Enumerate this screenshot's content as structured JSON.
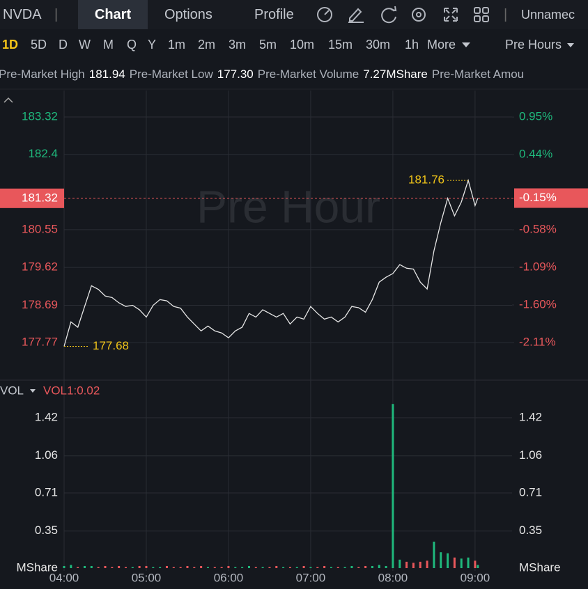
{
  "header": {
    "symbol": "NVDA",
    "tabs": [
      "Chart",
      "Options",
      "Profile"
    ],
    "active_tab": 0,
    "user": "Unnamec"
  },
  "timeframes": {
    "items": [
      "1D",
      "5D",
      "D",
      "W",
      "M",
      "Q",
      "Y",
      "1m",
      "2m",
      "3m",
      "5m",
      "10m",
      "15m",
      "30m",
      "1h"
    ],
    "active": 0,
    "more": "More",
    "session": "Pre Hours"
  },
  "stats": [
    {
      "label": "Pre-Market High",
      "value": "181.94"
    },
    {
      "label": "Pre-Market Low",
      "value": "177.30"
    },
    {
      "label": "Pre-Market Volume",
      "value": "7.27MShare"
    },
    {
      "label": "Pre-Market Amou"
    }
  ],
  "price_chart": {
    "type": "line",
    "watermark": "Pre Hour",
    "color": "#e6e6e6",
    "up_color": "#1fb87c",
    "down_color": "#e8575b",
    "x": [
      "04:00",
      "04:05",
      "04:10",
      "04:15",
      "04:20",
      "04:25",
      "04:30",
      "04:35",
      "04:40",
      "04:45",
      "04:50",
      "04:55",
      "05:00",
      "05:05",
      "05:10",
      "05:15",
      "05:20",
      "05:25",
      "05:30",
      "05:35",
      "05:40",
      "05:45",
      "05:50",
      "05:55",
      "06:00",
      "06:05",
      "06:10",
      "06:15",
      "06:20",
      "06:25",
      "06:30",
      "06:35",
      "06:40",
      "06:45",
      "06:50",
      "06:55",
      "07:00",
      "07:05",
      "07:10",
      "07:15",
      "07:20",
      "07:25",
      "07:30",
      "07:35",
      "07:40",
      "07:45",
      "07:50",
      "07:55",
      "08:00",
      "08:05",
      "08:10",
      "08:15",
      "08:20",
      "08:25",
      "08:30",
      "08:35",
      "08:40",
      "08:45",
      "08:50",
      "08:55",
      "09:00",
      "09:02"
    ],
    "values": [
      177.68,
      178.28,
      178.15,
      178.66,
      179.17,
      179.08,
      178.92,
      178.88,
      178.75,
      178.66,
      178.69,
      178.58,
      178.4,
      178.69,
      178.83,
      178.8,
      178.66,
      178.62,
      178.4,
      178.23,
      178.06,
      178.18,
      178.06,
      178.01,
      177.89,
      178.06,
      178.15,
      178.49,
      178.4,
      178.58,
      178.49,
      178.4,
      178.49,
      178.23,
      178.4,
      178.35,
      178.66,
      178.49,
      178.35,
      178.4,
      178.28,
      178.4,
      178.66,
      178.63,
      178.52,
      178.83,
      179.26,
      179.38,
      179.47,
      179.69,
      179.6,
      179.58,
      179.26,
      179.09,
      180.03,
      180.72,
      181.32,
      180.89,
      181.23,
      181.76,
      181.14,
      181.32
    ],
    "xlim": [
      "04:00",
      "09:27"
    ],
    "xticks": [
      "04:00",
      "05:00",
      "06:00",
      "07:00",
      "08:00",
      "09:00"
    ],
    "ylim": [
      176.85,
      183.97
    ],
    "yticks": [
      183.32,
      182.4,
      180.55,
      179.62,
      178.69,
      177.77
    ],
    "y2lim": [
      -2.62,
      1.31
    ],
    "y2ticks": [
      {
        "value": 0.95,
        "label": "0.95%"
      },
      {
        "value": 0.44,
        "label": "0.44%"
      },
      {
        "value": -0.58,
        "label": "-0.58%"
      },
      {
        "value": -1.09,
        "label": "-1.09%"
      },
      {
        "value": -1.6,
        "label": "-1.60%"
      },
      {
        "value": -2.11,
        "label": "-2.11%"
      }
    ],
    "last_price": 181.32,
    "last_change": {
      "value": -0.15,
      "label": "-0.15%"
    },
    "high": 181.76,
    "low": 177.68,
    "grid": true
  },
  "volume_chart": {
    "type": "bar",
    "title": "VOL",
    "indicator": "VOL1:0.02",
    "unit": "MShare",
    "values": [
      0.02,
      0.03,
      0.01,
      0.02,
      0.02,
      0.01,
      0.02,
      0.01,
      0.02,
      0.01,
      0.01,
      0.02,
      0.02,
      0.01,
      0.01,
      0.02,
      0.01,
      0.01,
      0.02,
      0.01,
      0.02,
      0.01,
      0.01,
      0.01,
      0.02,
      0.01,
      0.01,
      0.02,
      0.01,
      0.01,
      0.01,
      0.02,
      0.01,
      0.01,
      0.01,
      0.02,
      0.01,
      0.01,
      0.02,
      0.01,
      0.01,
      0.01,
      0.02,
      0.01,
      0.02,
      0.02,
      0.03,
      0.02,
      1.55,
      0.08,
      0.06,
      0.05,
      0.06,
      0.07,
      0.25,
      0.15,
      0.14,
      0.1,
      0.09,
      0.1,
      0.07,
      0.03
    ],
    "ylim": [
      0,
      1.775
    ],
    "yticks": [
      1.42,
      1.06,
      0.71,
      0.35
    ],
    "grid": true
  }
}
